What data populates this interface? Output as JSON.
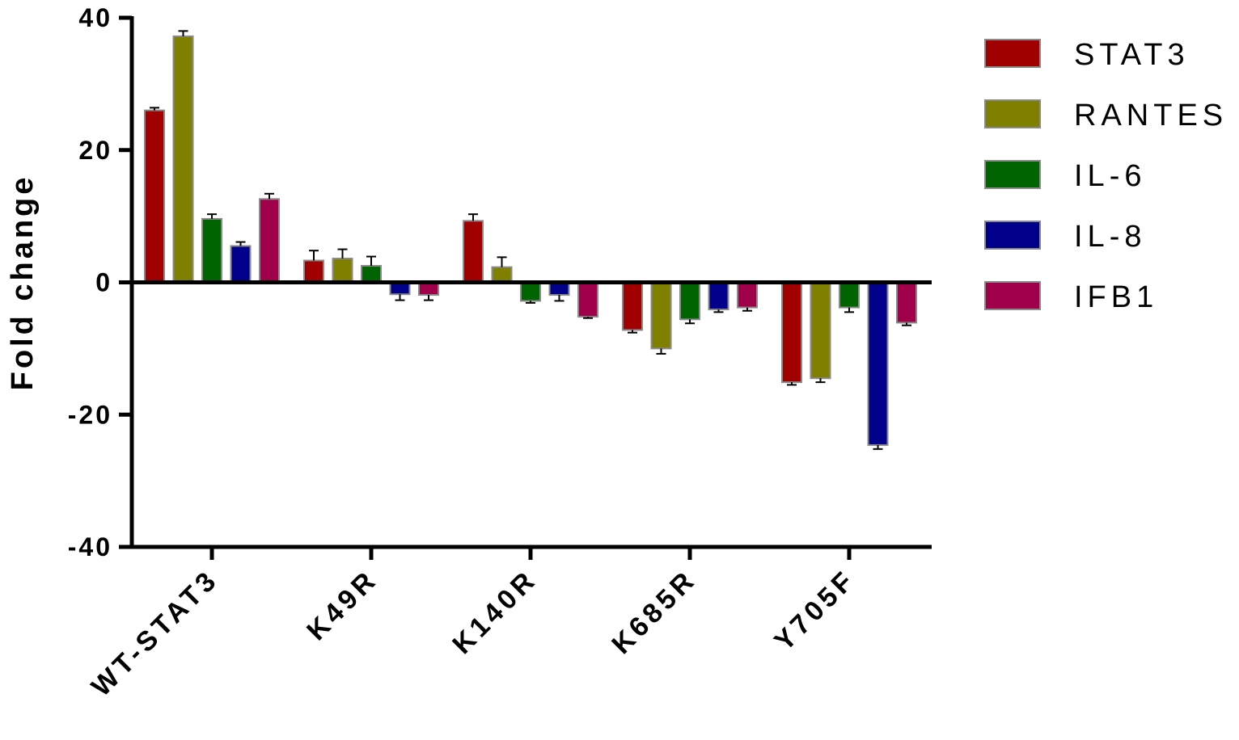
{
  "chart_data": {
    "type": "bar",
    "title": "",
    "xlabel": "",
    "ylabel": "Fold change",
    "ylim": [
      -40,
      40
    ],
    "yticks": [
      "40",
      "20",
      "0",
      "-20",
      "-40"
    ],
    "categories": [
      "WT-STAT3",
      "K49R",
      "K140R",
      "K685R",
      "Y705F"
    ],
    "legend_position": "right",
    "grid": false,
    "series": [
      {
        "name": "STAT3",
        "color": "#a00000",
        "values": [
          26,
          3.3,
          9.3,
          -7.2,
          -15.1
        ],
        "errors": [
          0.4,
          1.5,
          1.0,
          0.4,
          0.4
        ]
      },
      {
        "name": "RANTES",
        "color": "#808000",
        "values": [
          37.2,
          3.6,
          2.3,
          -10,
          -14.5
        ],
        "errors": [
          0.8,
          1.4,
          1.5,
          0.8,
          0.6
        ]
      },
      {
        "name": "IL-6",
        "color": "#006400",
        "values": [
          9.6,
          2.5,
          -2.8,
          -5.6,
          -3.8
        ],
        "errors": [
          0.7,
          1.4,
          0.3,
          0.6,
          0.7
        ]
      },
      {
        "name": "IL-8",
        "color": "#00008b",
        "values": [
          5.5,
          -1.8,
          -1.9,
          -4.1,
          -24.6
        ],
        "errors": [
          0.6,
          0.9,
          0.9,
          0.4,
          0.6
        ]
      },
      {
        "name": "IFB1",
        "color": "#a0004a",
        "values": [
          12.6,
          -1.9,
          -5.2,
          -3.8,
          -6.1
        ],
        "errors": [
          0.8,
          0.8,
          0.2,
          0.5,
          0.4
        ]
      }
    ]
  }
}
